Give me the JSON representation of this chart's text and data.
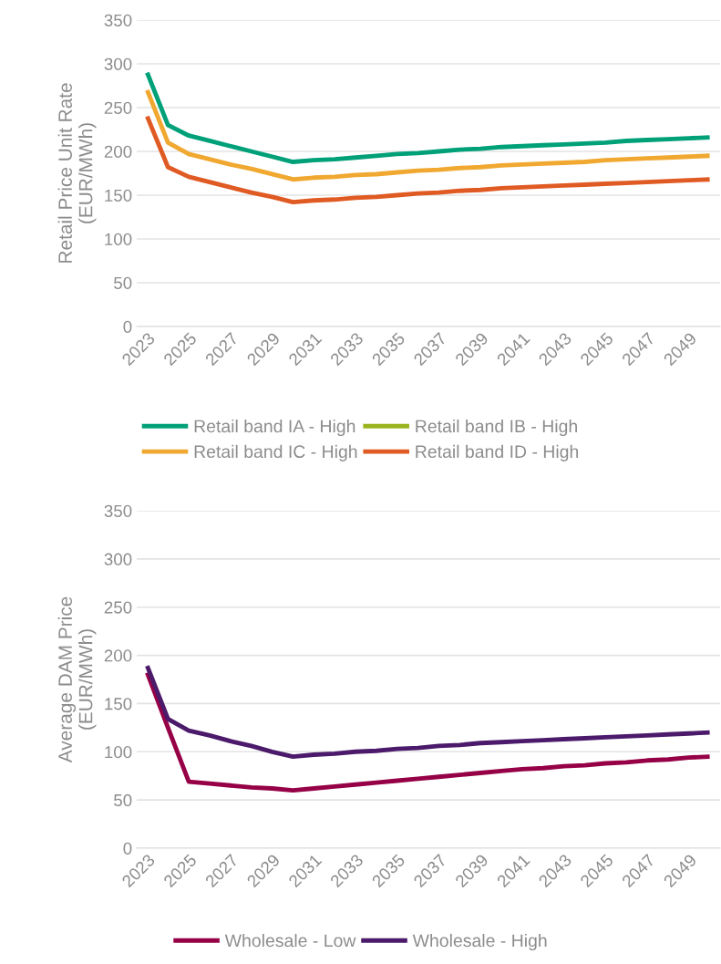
{
  "chart_data": [
    {
      "type": "line",
      "ylabel": "Retail Price Unit Rate\n(EUR/MWh)",
      "categories": [
        "2023",
        null,
        "2025",
        null,
        "2027",
        null,
        "2029",
        null,
        "2031",
        null,
        "2033",
        null,
        "2035",
        null,
        "2037",
        null,
        "2039",
        null,
        "2041",
        null,
        "2043",
        null,
        "2045",
        null,
        "2047",
        null,
        "2049",
        null
      ],
      "series": [
        {
          "name": "Retail band IA - High",
          "color": "#00a078",
          "values": [
            290,
            230,
            218,
            212,
            206,
            200,
            194,
            188,
            190,
            191,
            193,
            195,
            197,
            198,
            200,
            202,
            203,
            205,
            206,
            207,
            208,
            209,
            210,
            212,
            213,
            214,
            215,
            216
          ]
        },
        {
          "name": "Retail band IB - High",
          "color": "#9ab41e",
          "values": [
            null,
            null,
            null,
            null,
            null,
            null,
            null,
            null,
            null,
            null,
            null,
            null,
            null,
            null,
            null,
            null,
            null,
            null,
            null,
            null,
            null,
            null,
            null,
            null,
            null,
            null,
            null,
            null
          ]
        },
        {
          "name": "Retail band IC - High",
          "color": "#f0a830",
          "values": [
            270,
            210,
            197,
            191,
            185,
            180,
            174,
            168,
            170,
            171,
            173,
            174,
            176,
            178,
            179,
            181,
            182,
            184,
            185,
            186,
            187,
            188,
            190,
            191,
            192,
            193,
            194,
            195
          ]
        },
        {
          "name": "Retail band ID - High",
          "color": "#e05a23",
          "values": [
            240,
            182,
            171,
            165,
            159,
            153,
            148,
            142,
            144,
            145,
            147,
            148,
            150,
            152,
            153,
            155,
            156,
            158,
            159,
            160,
            161,
            162,
            163,
            164,
            165,
            166,
            167,
            168
          ]
        }
      ],
      "ylim": [
        0,
        350
      ],
      "yticks": [
        0,
        50,
        100,
        150,
        200,
        250,
        300,
        350
      ],
      "grid": "y",
      "legend": "bottom"
    },
    {
      "type": "line",
      "ylabel": "Average DAM Price\n(EUR/MWh)",
      "categories": [
        "2023",
        null,
        "2025",
        null,
        "2027",
        null,
        "2029",
        null,
        "2031",
        null,
        "2033",
        null,
        "2035",
        null,
        "2037",
        null,
        "2039",
        null,
        "2041",
        null,
        "2043",
        null,
        "2045",
        null,
        "2047",
        null,
        "2049",
        null
      ],
      "series": [
        {
          "name": "Wholesale - Low",
          "color": "#960046",
          "values": [
            182,
            125,
            69,
            67,
            65,
            63,
            62,
            60,
            62,
            64,
            66,
            68,
            70,
            72,
            74,
            76,
            78,
            80,
            82,
            83,
            85,
            86,
            88,
            89,
            91,
            92,
            94,
            95
          ]
        },
        {
          "name": "Wholesale - High",
          "color": "#4b1a6a",
          "values": [
            189,
            134,
            122,
            117,
            111,
            106,
            100,
            95,
            97,
            98,
            100,
            101,
            103,
            104,
            106,
            107,
            109,
            110,
            111,
            112,
            113,
            114,
            115,
            116,
            117,
            118,
            119,
            120
          ]
        }
      ],
      "ylim": [
        0,
        350
      ],
      "yticks": [
        0,
        50,
        100,
        150,
        200,
        250,
        300,
        350
      ],
      "grid": "y",
      "legend": "bottom"
    }
  ]
}
